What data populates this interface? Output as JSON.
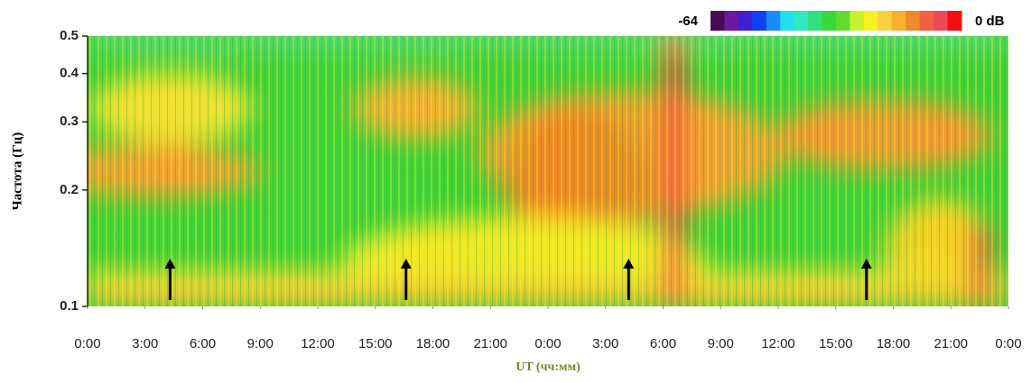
{
  "chart_data": {
    "type": "spectrogram",
    "y_label": "Частота (Гц)",
    "x_label": "UT (чч:мм)",
    "ylim": [
      0.1,
      0.5
    ],
    "yticks": [
      0.1,
      0.2,
      0.3,
      0.4,
      0.5
    ],
    "y_log": true,
    "xlim": [
      0,
      48
    ],
    "xticks": [
      {
        "value": 0,
        "label": "0:00"
      },
      {
        "value": 3,
        "label": "3:00"
      },
      {
        "value": 6,
        "label": "6:00"
      },
      {
        "value": 9,
        "label": "9:00"
      },
      {
        "value": 12,
        "label": "12:00"
      },
      {
        "value": 15,
        "label": "15:00"
      },
      {
        "value": 18,
        "label": "18:00"
      },
      {
        "value": 21,
        "label": "21:00"
      },
      {
        "value": 24,
        "label": "0:00"
      },
      {
        "value": 27,
        "label": "3:00"
      },
      {
        "value": 30,
        "label": "6:00"
      },
      {
        "value": 33,
        "label": "9:00"
      },
      {
        "value": 36,
        "label": "12:00"
      },
      {
        "value": 39,
        "label": "15:00"
      },
      {
        "value": 42,
        "label": "18:00"
      },
      {
        "value": 45,
        "label": "21:00"
      },
      {
        "value": 48,
        "label": "0:00"
      }
    ],
    "colorbar": {
      "min": -64,
      "max": {
        "value": 0,
        "label": "0 dB"
      },
      "colors": [
        "#4a0a5a",
        "#6a1aa0",
        "#4020d0",
        "#1040f0",
        "#1a8cff",
        "#20e0f0",
        "#30e8c0",
        "#30e080",
        "#38d838",
        "#60dc30",
        "#c8f030",
        "#f8f020",
        "#f8d040",
        "#f8b030",
        "#f08828",
        "#f06040",
        "#f04858",
        "#f01010"
      ]
    },
    "annotations_x": [
      4.3,
      16.6,
      28.2,
      40.6
    ]
  }
}
